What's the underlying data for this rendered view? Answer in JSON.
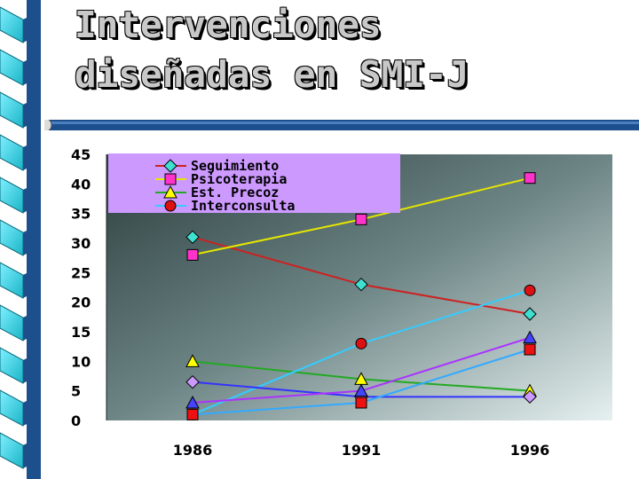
{
  "slide": {
    "title_line1": "Intervenciones",
    "title_line2": "diseñadas en SMI-J",
    "accent_colors": {
      "binding_blue": "#1d4f8c",
      "binding_cyan": "#24c3d6",
      "title_text": "#c8c8c8"
    }
  },
  "chart_data": {
    "type": "line",
    "title": "",
    "xlabel": "",
    "ylabel": "",
    "categories": [
      "1986",
      "1991",
      "1996"
    ],
    "ylim": [
      0,
      45
    ],
    "yticks": [
      0,
      5,
      10,
      15,
      20,
      25,
      30,
      35,
      40,
      45
    ],
    "grid": false,
    "legend_position": "top-left",
    "series": [
      {
        "name": "Seguimiento",
        "values": [
          31,
          23,
          18
        ],
        "color": "#cc2222",
        "marker": "diamond",
        "marker_color": "#40e0d0",
        "in_legend": true
      },
      {
        "name": "Psicoterapia",
        "values": [
          28,
          34,
          41
        ],
        "color": "#e6e600",
        "marker": "square",
        "marker_color": "#ff33cc",
        "in_legend": true
      },
      {
        "name": "Est. Precoz",
        "values": [
          10,
          7,
          5
        ],
        "color": "#22aa22",
        "marker": "triangle",
        "marker_color": "#ffff00",
        "in_legend": true
      },
      {
        "name": "Interconsulta",
        "values": [
          1,
          13,
          22
        ],
        "color": "#33ccff",
        "marker": "circle",
        "marker_color": "#dd1111",
        "in_legend": true
      },
      {
        "values": [
          6.5,
          4,
          4
        ],
        "color": "#3333ff",
        "marker": "diamond",
        "marker_color": "#cc99ff",
        "in_legend": false
      },
      {
        "values": [
          3,
          5,
          14
        ],
        "color": "#aa33ff",
        "marker": "triangle",
        "marker_color": "#4444ff",
        "in_legend": false
      },
      {
        "values": [
          1,
          3,
          12
        ],
        "color": "#33aaff",
        "marker": "square",
        "marker_color": "#ee1111",
        "in_legend": false
      }
    ]
  }
}
